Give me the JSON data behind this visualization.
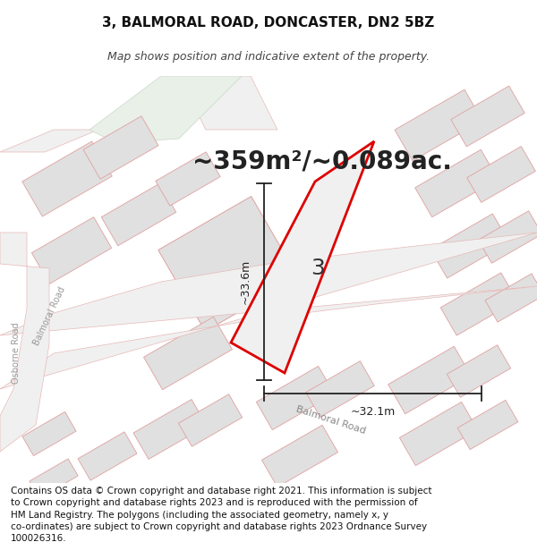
{
  "title": "3, BALMORAL ROAD, DONCASTER, DN2 5BZ",
  "subtitle": "Map shows position and indicative extent of the property.",
  "area_text": "~359m²/~0.089ac.",
  "label_number": "3",
  "dim_vertical": "~33.6m",
  "dim_horizontal": "~32.1m",
  "road_label_balmoral_diag": "Balmoral Road",
  "road_label_balmoral_left": "Balmoral Road",
  "road_label_osborne": "Osborne Road",
  "footer_text": "Contains OS data © Crown copyright and database right 2021. This information is subject to Crown copyright and database rights 2023 and is reproduced with the permission of HM Land Registry. The polygons (including the associated geometry, namely x, y co-ordinates) are subject to Crown copyright and database rights 2023 Ordnance Survey 100026316.",
  "bg_color": "#f8f8f8",
  "plot_fill": "#e8e8e8",
  "plot_outline": "#dd0000",
  "road_fill": "#f0f0f0",
  "road_outline": "#e8b8b8",
  "block_fill": "#e0e0e0",
  "block_outline": "#e0a0a0",
  "green_fill": "#e8f0e8",
  "green_outline": "#c8d8c8",
  "dim_color": "#222222",
  "title_fontsize": 11,
  "subtitle_fontsize": 9,
  "area_fontsize": 20,
  "footer_fontsize": 7.5,
  "label_fontsize": 18,
  "road_label_fontsize": 8,
  "dim_fontsize": 9
}
